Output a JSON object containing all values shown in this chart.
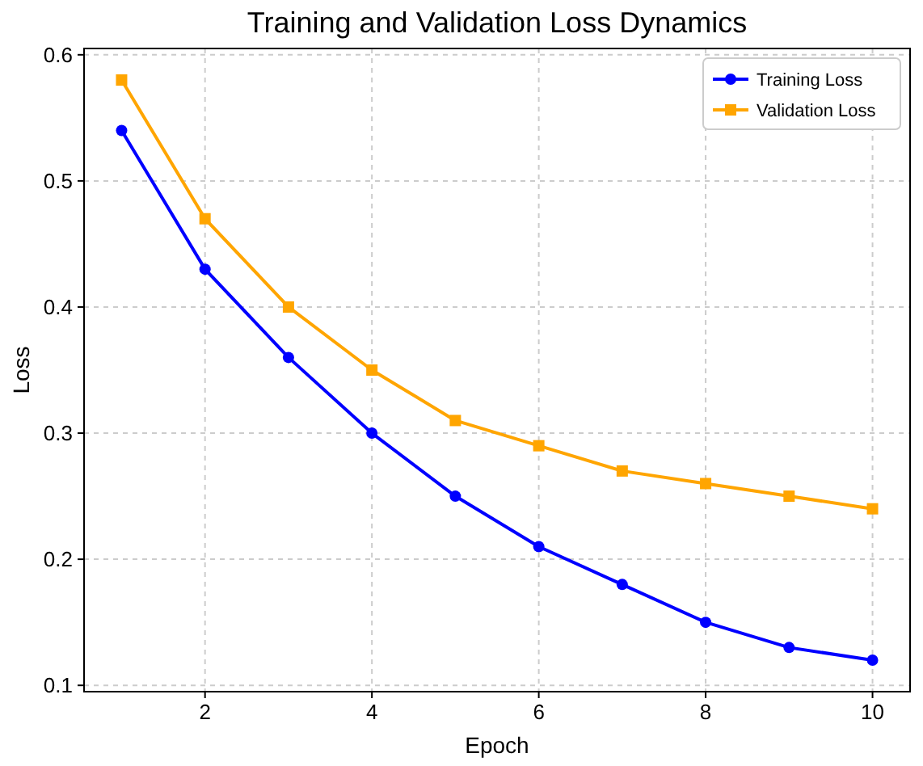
{
  "chart_data": {
    "type": "line",
    "title": "Training and Validation Loss Dynamics",
    "xlabel": "Epoch",
    "ylabel": "Loss",
    "x": [
      1,
      2,
      3,
      4,
      5,
      6,
      7,
      8,
      9,
      10
    ],
    "series": [
      {
        "name": "Training Loss",
        "color": "#0000ff",
        "marker": "circle",
        "values": [
          0.54,
          0.43,
          0.36,
          0.3,
          0.25,
          0.21,
          0.18,
          0.15,
          0.13,
          0.12
        ]
      },
      {
        "name": "Validation Loss",
        "color": "#ffa500",
        "marker": "square",
        "values": [
          0.58,
          0.47,
          0.4,
          0.35,
          0.31,
          0.29,
          0.27,
          0.26,
          0.25,
          0.24
        ]
      }
    ],
    "xlim": [
      0.55,
      10.45
    ],
    "xticks": [
      2,
      4,
      6,
      8,
      10
    ],
    "ylim": [
      0.095,
      0.605
    ],
    "yticks": [
      {
        "value": 0.1,
        "label": "0.1"
      },
      {
        "value": 0.2,
        "label": "0.2"
      },
      {
        "value": 0.3,
        "label": "0.3"
      },
      {
        "value": 0.4,
        "label": "0.4"
      },
      {
        "value": 0.5,
        "label": "0.5"
      },
      {
        "value": 0.6,
        "label": "0.6"
      }
    ],
    "grid": true,
    "legend": "top right",
    "line_style": "solid"
  }
}
